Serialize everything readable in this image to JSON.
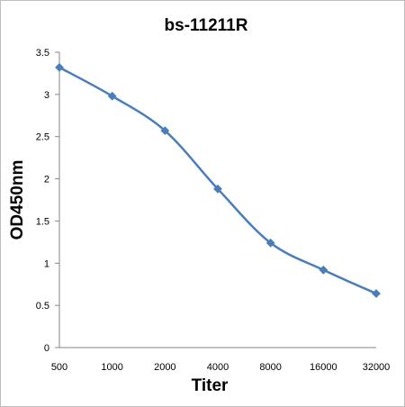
{
  "chart_data": {
    "type": "line",
    "title": "bs-11211R",
    "xlabel": "Titer",
    "ylabel": "OD450nm",
    "categories": [
      "500",
      "1000",
      "2000",
      "4000",
      "8000",
      "16000",
      "32000"
    ],
    "values": [
      3.32,
      2.98,
      2.57,
      1.88,
      1.24,
      0.92,
      0.64
    ],
    "ylim": [
      0,
      3.5
    ],
    "yticks": [
      "0",
      "0.5",
      "1",
      "1.5",
      "2",
      "2.5",
      "3",
      "3.5"
    ],
    "grid": false,
    "legend": "none",
    "line_color": "#4a7ebb",
    "marker": "diamond"
  }
}
